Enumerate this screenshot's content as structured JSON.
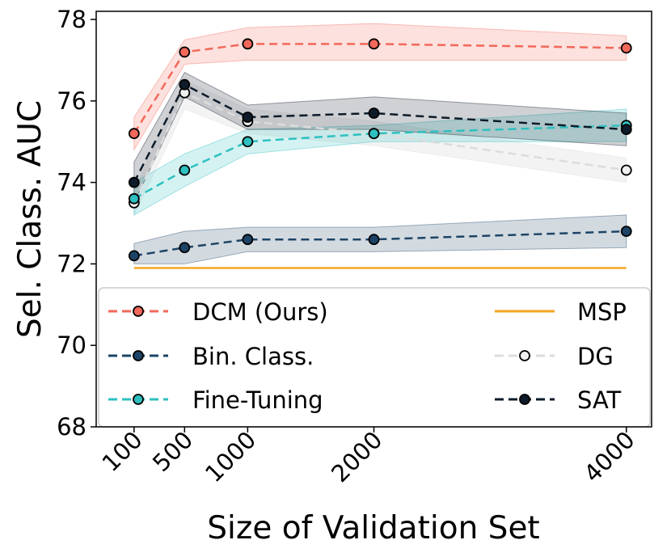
{
  "chart_data": {
    "type": "line",
    "title": "",
    "xlabel": "Size of Validation Set",
    "ylabel": "Sel. Class. AUC",
    "x": [
      100,
      500,
      1000,
      2000,
      4000
    ],
    "xticks": [
      "100",
      "500",
      "1000",
      "2000",
      "4000"
    ],
    "yticks": [
      "68",
      "70",
      "72",
      "74",
      "76",
      "78"
    ],
    "xlim": [
      -200,
      4200
    ],
    "ylim": [
      68,
      78.2
    ],
    "grid": false,
    "legend_position": "lower-center",
    "series": [
      {
        "name": "DCM (Ours)",
        "color": "#f2685a",
        "style": "dashed",
        "marker": "circle",
        "marker_fill": "#f2685a",
        "values": [
          75.2,
          77.2,
          77.4,
          77.4,
          77.3
        ],
        "lower": [
          74.8,
          76.9,
          77.0,
          77.0,
          77.0
        ],
        "upper": [
          75.6,
          77.5,
          77.8,
          77.9,
          77.6
        ]
      },
      {
        "name": "Bin. Class.",
        "color": "#1d4466",
        "style": "dashed",
        "marker": "circle",
        "marker_fill": "#1d4466",
        "values": [
          72.2,
          72.4,
          72.6,
          72.6,
          72.8
        ],
        "lower": [
          72.0,
          72.0,
          72.3,
          72.3,
          72.4
        ],
        "upper": [
          72.5,
          72.8,
          72.9,
          72.9,
          73.2
        ]
      },
      {
        "name": "Fine-Tuning",
        "color": "#2ec0c0",
        "style": "dashed",
        "marker": "circle",
        "marker_fill": "#2ec0c0",
        "values": [
          73.6,
          74.3,
          75.0,
          75.2,
          75.4
        ],
        "lower": [
          73.2,
          73.9,
          74.7,
          75.0,
          75.0
        ],
        "upper": [
          74.0,
          74.7,
          75.3,
          75.4,
          75.8
        ]
      },
      {
        "name": "MSP",
        "color": "#f5a623",
        "style": "solid",
        "marker": "none",
        "values": [
          71.9,
          71.9,
          71.9,
          71.9,
          71.9
        ]
      },
      {
        "name": "DG",
        "color": "#dcdcdc",
        "style": "dashed",
        "marker": "circle",
        "marker_fill": "#f0f0f0",
        "values": [
          73.5,
          76.2,
          75.5,
          75.2,
          74.3
        ],
        "lower": [
          73.2,
          75.8,
          75.2,
          74.9,
          74.0
        ],
        "upper": [
          73.8,
          76.5,
          75.8,
          75.5,
          74.6
        ]
      },
      {
        "name": "SAT",
        "color": "#0d1b2a",
        "style": "dashed",
        "marker": "circle",
        "marker_fill": "#0d1b2a",
        "values": [
          74.0,
          76.4,
          75.6,
          75.7,
          75.3
        ],
        "lower": [
          73.5,
          76.1,
          75.3,
          75.3,
          74.9
        ],
        "upper": [
          74.5,
          76.7,
          75.9,
          76.1,
          75.7
        ]
      }
    ]
  },
  "legend": {
    "left": [
      "DCM (Ours)",
      "Bin. Class.",
      "Fine-Tuning"
    ],
    "right": [
      "MSP",
      "DG",
      "SAT"
    ]
  }
}
